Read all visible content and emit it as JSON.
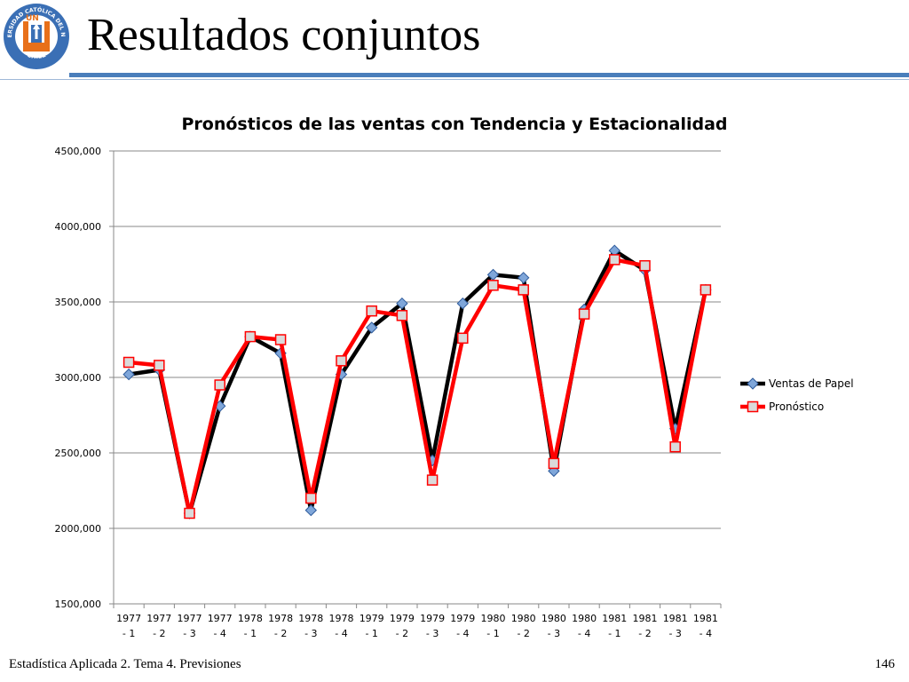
{
  "slide": {
    "title": "Resultados conjuntos",
    "logo_text": "UNIVERSIDAD CATÓLICA DEL NORTE",
    "logo_subtext": "CHILE",
    "logo_letters": "UN",
    "footer_left": "Estadística Aplicada 2. Tema 4. Previsiones",
    "page_number": "146",
    "colors": {
      "accent": "#4a7ebb",
      "logo_orange": "#e8701a",
      "logo_blue": "#3a6fb5"
    }
  },
  "chart_data": {
    "type": "line",
    "title": "Pronósticos de las ventas con Tendencia y Estacionalidad",
    "xlabel": "",
    "ylabel": "",
    "categories": [
      [
        "1977",
        "- 1"
      ],
      [
        "1977",
        "- 2"
      ],
      [
        "1977",
        "- 3"
      ],
      [
        "1977",
        "- 4"
      ],
      [
        "1978",
        "- 1"
      ],
      [
        "1978",
        "- 2"
      ],
      [
        "1978",
        "- 3"
      ],
      [
        "1978",
        "- 4"
      ],
      [
        "1979",
        "- 1"
      ],
      [
        "1979",
        "- 2"
      ],
      [
        "1979",
        "- 3"
      ],
      [
        "1979",
        "- 4"
      ],
      [
        "1980",
        "- 1"
      ],
      [
        "1980",
        "- 2"
      ],
      [
        "1980",
        "- 3"
      ],
      [
        "1980",
        "- 4"
      ],
      [
        "1981",
        "- 1"
      ],
      [
        "1981",
        "- 2"
      ],
      [
        "1981",
        "- 3"
      ],
      [
        "1981",
        "- 4"
      ]
    ],
    "ylim": [
      1500,
      4500
    ],
    "yticks": [
      1500,
      2000,
      2500,
      3000,
      3500,
      4000,
      4500
    ],
    "ytick_labels": [
      "1500,000",
      "2000,000",
      "2500,000",
      "3000,000",
      "3500,000",
      "4000,000",
      "4500,000"
    ],
    "grid": true,
    "legend_position": "right",
    "series": [
      {
        "name": "Ventas de Papel",
        "color": "#000000",
        "marker": "diamond",
        "values": [
          3020,
          3050,
          2100,
          2810,
          3270,
          3160,
          2120,
          3020,
          3330,
          3490,
          2450,
          3490,
          3680,
          3660,
          2380,
          3450,
          3840,
          3710,
          2660,
          3580
        ]
      },
      {
        "name": "Pronóstico",
        "color": "#ff0000",
        "marker": "square",
        "values": [
          3100,
          3080,
          2100,
          2950,
          3270,
          3250,
          2200,
          3110,
          3440,
          3410,
          2320,
          3260,
          3610,
          3580,
          2430,
          3420,
          3780,
          3740,
          2540,
          3580
        ]
      }
    ]
  }
}
